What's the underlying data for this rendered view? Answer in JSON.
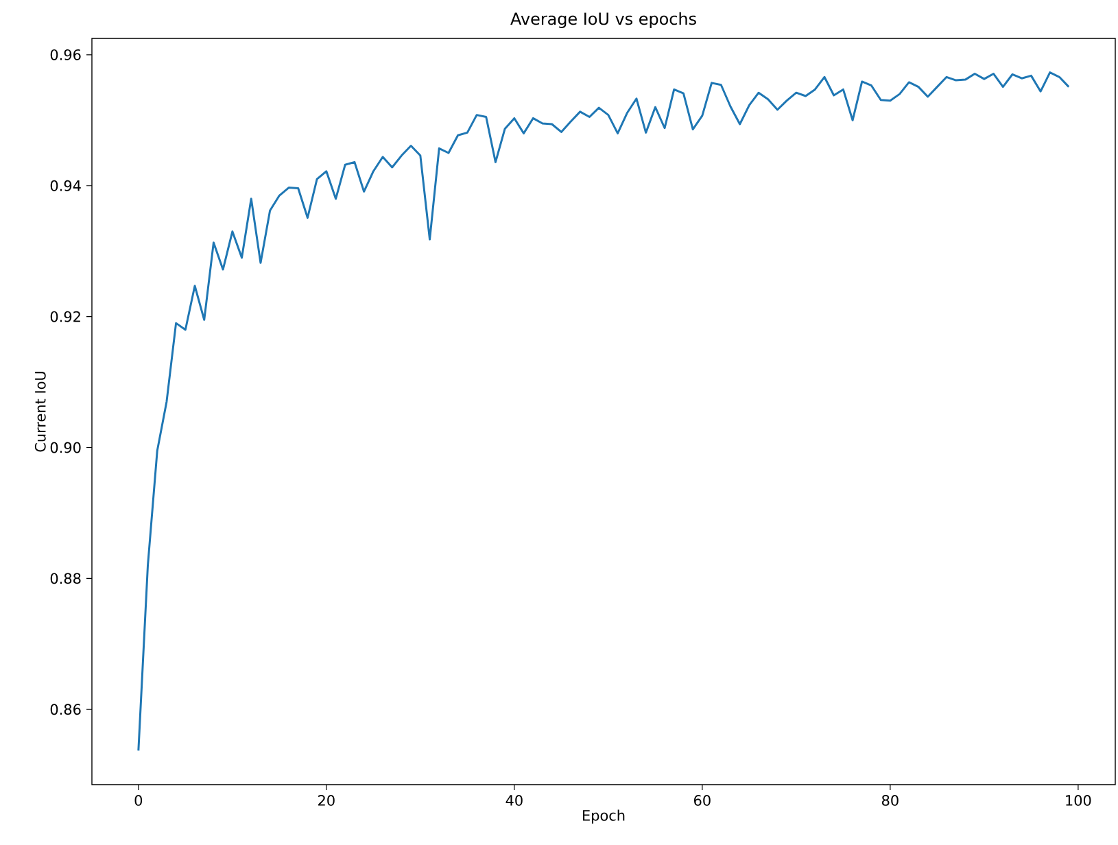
{
  "chart_data": {
    "type": "line",
    "title": "Average IoU vs epochs",
    "xlabel": "Epoch",
    "ylabel": "Current IoU",
    "x": [
      0,
      1,
      2,
      3,
      4,
      5,
      6,
      7,
      8,
      9,
      10,
      11,
      12,
      13,
      14,
      15,
      16,
      17,
      18,
      19,
      20,
      21,
      22,
      23,
      24,
      25,
      26,
      27,
      28,
      29,
      30,
      31,
      32,
      33,
      34,
      35,
      36,
      37,
      38,
      39,
      40,
      41,
      42,
      43,
      44,
      45,
      46,
      47,
      48,
      49,
      50,
      51,
      52,
      53,
      54,
      55,
      56,
      57,
      58,
      59,
      60,
      61,
      62,
      63,
      64,
      65,
      66,
      67,
      68,
      69,
      70,
      71,
      72,
      73,
      74,
      75,
      76,
      77,
      78,
      79,
      80,
      81,
      82,
      83,
      84,
      85,
      86,
      87,
      88,
      89,
      90,
      91,
      92,
      93,
      94,
      95,
      96,
      97,
      98,
      99
    ],
    "series": [
      {
        "color": "#1f77b4",
        "values": [
          0.8537,
          0.882,
          0.8995,
          0.907,
          0.919,
          0.918,
          0.9247,
          0.9195,
          0.9313,
          0.9272,
          0.933,
          0.929,
          0.938,
          0.9282,
          0.9362,
          0.9385,
          0.9397,
          0.9396,
          0.9351,
          0.941,
          0.9422,
          0.938,
          0.9432,
          0.9436,
          0.9391,
          0.9422,
          0.9444,
          0.9428,
          0.9446,
          0.9461,
          0.9446,
          0.9318,
          0.9457,
          0.945,
          0.9477,
          0.9481,
          0.9508,
          0.9505,
          0.9436,
          0.9487,
          0.9503,
          0.948,
          0.9503,
          0.9495,
          0.9494,
          0.9482,
          0.9498,
          0.9513,
          0.9505,
          0.9519,
          0.9508,
          0.948,
          0.9511,
          0.9533,
          0.9481,
          0.952,
          0.9488,
          0.9547,
          0.9541,
          0.9486,
          0.9507,
          0.9557,
          0.9554,
          0.9521,
          0.9494,
          0.9523,
          0.9542,
          0.9532,
          0.9516,
          0.953,
          0.9542,
          0.9537,
          0.9547,
          0.9566,
          0.9538,
          0.9547,
          0.95,
          0.9559,
          0.9553,
          0.9531,
          0.953,
          0.954,
          0.9558,
          0.9551,
          0.9536,
          0.9551,
          0.9566,
          0.9561,
          0.9562,
          0.9571,
          0.9563,
          0.9571,
          0.9551,
          0.957,
          0.9564,
          0.9568,
          0.9544,
          0.9573,
          0.9566,
          0.9551
        ]
      }
    ],
    "xlim": [
      -4.95,
      103.95
    ],
    "ylim": [
      0.8485,
      0.9625
    ],
    "xticks": [
      0,
      20,
      40,
      60,
      80,
      100
    ],
    "yticks": [
      0.86,
      0.88,
      {
        "value": 0.9,
        "label": "0.90"
      },
      0.92,
      0.94,
      0.96
    ],
    "grid": false
  }
}
